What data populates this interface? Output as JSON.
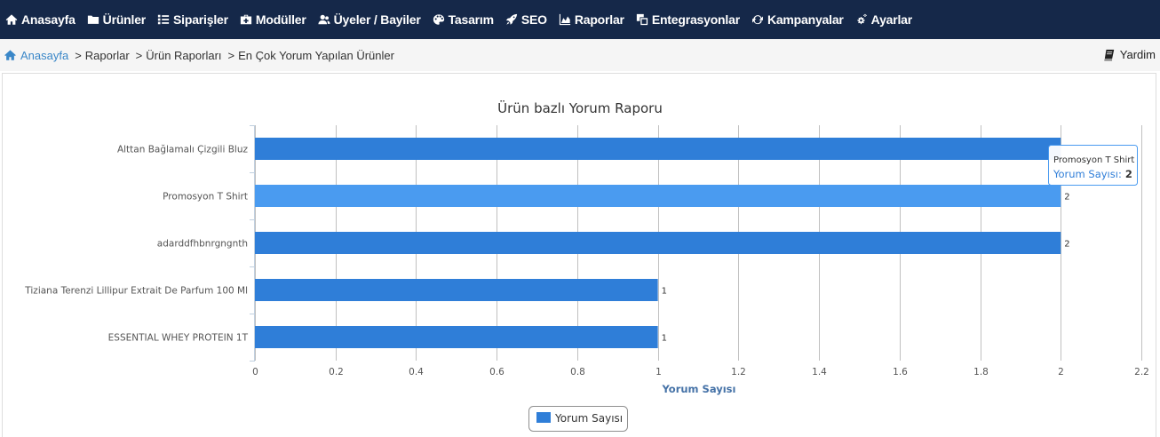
{
  "nav": {
    "items": [
      {
        "label": "Anasayfa",
        "icon": "home-icon"
      },
      {
        "label": "Ürünler",
        "icon": "folder-icon"
      },
      {
        "label": "Siparişler",
        "icon": "list-icon"
      },
      {
        "label": "Modüller",
        "icon": "medkit-icon"
      },
      {
        "label": "Üyeler / Bayiler",
        "icon": "users-icon"
      },
      {
        "label": "Tasarım",
        "icon": "palette-icon"
      },
      {
        "label": "SEO",
        "icon": "rocket-icon"
      },
      {
        "label": "Raporlar",
        "icon": "area-chart-icon"
      },
      {
        "label": "Entegrasyonlar",
        "icon": "clone-icon"
      },
      {
        "label": "Kampanyalar",
        "icon": "refresh-icon"
      },
      {
        "label": "Ayarlar",
        "icon": "cogs-icon"
      }
    ]
  },
  "breadcrumb": {
    "home": "Anasayfa",
    "items": [
      "Raporlar",
      "Ürün Raporları",
      "En Çok Yorum Yapılan Ürünler"
    ],
    "separator": ">",
    "help": "Yardim"
  },
  "colors": {
    "nav_bg": "#152849",
    "bar": "#2f7ed8",
    "bar_hover": "#4a9bf0",
    "link": "#3a87c8",
    "axis_title": "#4572a7"
  },
  "chart_data": {
    "type": "bar",
    "orientation": "horizontal",
    "title": "Ürün bazlı Yorum Raporu",
    "categories": [
      "Alttan Bağlamalı Çizgili Bluz",
      "Promosyon T Shirt",
      "adarddfhbnrgngnth",
      "Tiziana Terenzi Lillipur Extrait De Parfum 100 Ml",
      "ESSENTIAL WHEY PROTEIN 1T"
    ],
    "series": [
      {
        "name": "Yorum Sayısı",
        "values": [
          2,
          2,
          2,
          1,
          1
        ]
      }
    ],
    "value_labels": [
      "",
      "2",
      "2",
      "1",
      "1"
    ],
    "xlabel": "Yorum Sayısı",
    "xlim": [
      0,
      2.2
    ],
    "xticks": [
      "0",
      "0.2",
      "0.4",
      "0.6",
      "0.8",
      "1",
      "1.2",
      "1.4",
      "1.6",
      "1.8",
      "2",
      "2.2"
    ],
    "grid": true,
    "legend": "bottom-center",
    "highlighted_index": 1,
    "tooltip": {
      "category": "Promosyon T Shirt",
      "series": "Yorum Sayısı",
      "sep": ":",
      "value": "2"
    }
  }
}
